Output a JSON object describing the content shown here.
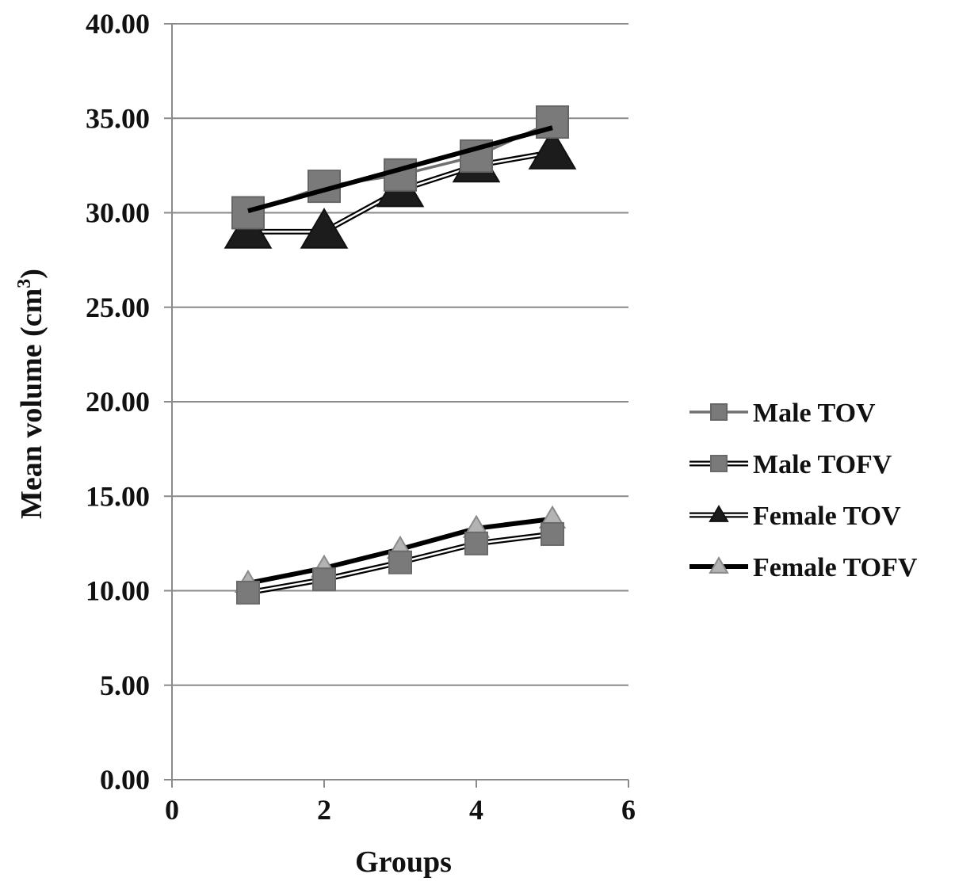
{
  "chart_data": {
    "type": "line",
    "xlabel": "Groups",
    "ylabel": "Mean volume (cm",
    "ylabel_superscript": "3",
    "ylabel_close": ")",
    "xlim": [
      0,
      6
    ],
    "ylim": [
      0,
      40
    ],
    "x_ticks": [
      0,
      2,
      4,
      6
    ],
    "x_tick_labels": [
      "0",
      "2",
      "4",
      "6"
    ],
    "y_ticks": [
      0,
      5,
      10,
      15,
      20,
      25,
      30,
      35,
      40
    ],
    "y_tick_labels": [
      "0.00",
      "5.00",
      "10.00",
      "15.00",
      "20.00",
      "25.00",
      "30.00",
      "35.00",
      "40.00"
    ],
    "grid": "horizontal",
    "legend_position": "right",
    "x": [
      1,
      2,
      3,
      4,
      5
    ],
    "series": [
      {
        "name": "Female TOFV",
        "values": [
          10.4,
          11.2,
          12.2,
          13.3,
          13.8
        ],
        "marker": "triangle",
        "line_color": "#000000",
        "line_style": "thick",
        "marker_fill": "#b3b3b3",
        "marker_stroke": "#8a8a8a",
        "marker_size": 14
      },
      {
        "name": "Male TOFV",
        "values": [
          9.9,
          10.6,
          11.5,
          12.5,
          13.0
        ],
        "marker": "square",
        "line_color": "#000000",
        "line_style": "double",
        "marker_fill": "#7a7a7a",
        "marker_stroke": "#6a6a6a",
        "marker_size": 14
      },
      {
        "name": "Female TOV",
        "values": [
          29.0,
          29.0,
          31.2,
          32.5,
          33.2
        ],
        "marker": "triangle",
        "line_color": "#000000",
        "line_style": "double",
        "marker_fill": "#1c1c1c",
        "marker_stroke": "#111111",
        "marker_size": 26
      },
      {
        "name": "Male TOV",
        "values": [
          30.0,
          31.4,
          32.0,
          33.0,
          34.8
        ],
        "marker": "square",
        "line_color": "#707070",
        "line_style": "medium",
        "marker_fill": "#7a7a7a",
        "marker_stroke": "#666666",
        "marker_size": 20
      }
    ],
    "trendline": {
      "values": [
        30.1,
        31.2,
        32.3,
        33.4,
        34.5
      ],
      "line_color": "#000000"
    },
    "legend_order": [
      "Male TOV",
      "Male TOFV",
      "Female TOV",
      "Female TOFV"
    ]
  }
}
